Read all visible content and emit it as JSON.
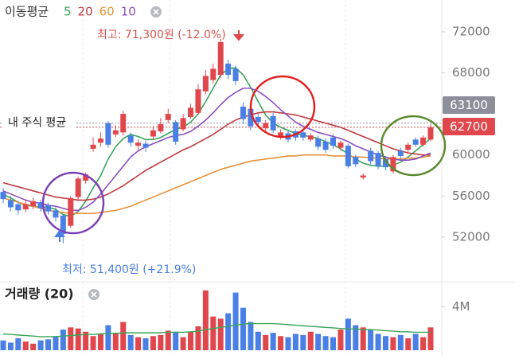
{
  "header": {
    "title": "이동평균"
  },
  "chart_data": [
    {
      "type": "candlestick",
      "up_color": "#e0474c",
      "down_color": "#4a7fe5",
      "open": [
        56400,
        55600,
        55200,
        54700,
        55000,
        55400,
        55100,
        54600,
        54100,
        53100,
        55900,
        57500,
        60600,
        61200,
        63100,
        62000,
        62200,
        61900,
        60900,
        61100,
        61800,
        62300,
        63400,
        63200,
        62500,
        63700,
        64100,
        66200,
        67300,
        67800,
        68900,
        68400,
        64700,
        64500,
        63700,
        62600,
        63800,
        61700,
        62100,
        62300,
        62200,
        61500,
        61600,
        61300,
        61700,
        60700,
        60900,
        59800,
        57800,
        60400,
        60200,
        59600,
        58400,
        60400,
        60500,
        61500,
        61000,
        61500
      ],
      "close": [
        55700,
        54900,
        54600,
        55200,
        55500,
        54800,
        54500,
        53900,
        52300,
        55800,
        57700,
        58100,
        61000,
        61600,
        61000,
        62400,
        64000,
        61200,
        61200,
        60700,
        62400,
        63000,
        64000,
        61300,
        63600,
        64600,
        66400,
        67700,
        68400,
        71000,
        67800,
        67200,
        63500,
        62800,
        63200,
        63100,
        62400,
        62200,
        61500,
        61700,
        61700,
        61900,
        60800,
        60500,
        60900,
        61200,
        58900,
        59100,
        58000,
        59400,
        58900,
        58800,
        59800,
        59900,
        61000,
        61000,
        61700,
        62700
      ],
      "high": [
        56800,
        56000,
        55500,
        55600,
        55800,
        55600,
        55300,
        54900,
        54200,
        56000,
        57900,
        58300,
        61700,
        62200,
        63300,
        62900,
        64300,
        62200,
        61500,
        61400,
        62800,
        63600,
        64500,
        63400,
        64000,
        65000,
        66900,
        68300,
        68900,
        71300,
        69300,
        68700,
        65100,
        64900,
        64000,
        63400,
        64100,
        62500,
        62400,
        62500,
        62500,
        62100,
        61900,
        61600,
        62000,
        61400,
        61100,
        60000,
        58200,
        60700,
        60400,
        59900,
        60000,
        60700,
        61200,
        61700,
        61900,
        63000
      ],
      "low": [
        55300,
        54500,
        54200,
        54400,
        54700,
        54500,
        54200,
        53500,
        51400,
        52900,
        55600,
        57200,
        60300,
        60800,
        60700,
        61700,
        61900,
        60800,
        60500,
        60300,
        61500,
        62100,
        63100,
        61000,
        62300,
        63500,
        63900,
        65900,
        67000,
        67500,
        67400,
        66800,
        63000,
        62400,
        62900,
        62200,
        62100,
        61500,
        61200,
        61400,
        61400,
        61300,
        60500,
        60200,
        60600,
        60400,
        58700,
        58800,
        57600,
        59100,
        58600,
        58500,
        58200,
        59600,
        60200,
        60800,
        60800,
        61300
      ],
      "series": [
        {
          "name": "5",
          "color": "#3aa55a",
          "values": [
            56200,
            55800,
            55400,
            55100,
            55000,
            54900,
            54900,
            54700,
            54200,
            54000,
            54500,
            55500,
            56800,
            58000,
            59600,
            60800,
            61600,
            62000,
            61800,
            61500,
            61500,
            61700,
            62100,
            62500,
            62700,
            63200,
            64000,
            65200,
            66500,
            67800,
            68400,
            68500,
            67800,
            66600,
            65200,
            63900,
            63100,
            62700,
            62400,
            62100,
            61900,
            61800,
            61600,
            61300,
            61000,
            60600,
            60100,
            59600,
            59200,
            59000,
            58900,
            58900,
            59000,
            59300,
            59800,
            60400,
            61000,
            61600
          ]
        },
        {
          "name": "20",
          "color": "#c0393f",
          "values": [
            57300,
            57100,
            56900,
            56700,
            56500,
            56300,
            56100,
            55900,
            55800,
            55700,
            55600,
            55600,
            55700,
            55900,
            56200,
            56600,
            57000,
            57500,
            58000,
            58500,
            58900,
            59300,
            59700,
            60100,
            60500,
            60800,
            61200,
            61600,
            62000,
            62500,
            63000,
            63400,
            63700,
            63900,
            64100,
            64200,
            64200,
            64100,
            64000,
            63900,
            63700,
            63500,
            63300,
            63100,
            62900,
            62700,
            62400,
            62100,
            61800,
            61500,
            61200,
            60900,
            60600,
            60400,
            60200,
            60100,
            60000,
            60000
          ]
        },
        {
          "name": "60",
          "color": "#e8923a",
          "values": [
            55800,
            55600,
            55400,
            55200,
            55000,
            54800,
            54600,
            54500,
            54400,
            54300,
            54300,
            54300,
            54300,
            54400,
            54500,
            54600,
            54800,
            55000,
            55300,
            55600,
            55900,
            56200,
            56500,
            56800,
            57100,
            57400,
            57700,
            58000,
            58300,
            58600,
            58800,
            59000,
            59200,
            59400,
            59500,
            59600,
            59700,
            59800,
            59900,
            59900,
            60000,
            60000,
            60000,
            60000,
            59900,
            59900,
            59900,
            59800,
            59800,
            59700,
            59700,
            59600,
            59600,
            59600,
            59700,
            59700,
            59800,
            59900
          ]
        },
        {
          "name": "10",
          "color": "#8a4fc0",
          "values": [
            56500,
            56200,
            55900,
            55600,
            55400,
            55300,
            55100,
            55000,
            54800,
            54600,
            54600,
            54900,
            55400,
            56200,
            57100,
            58000,
            58900,
            59800,
            60400,
            60800,
            61100,
            61400,
            61700,
            61900,
            62000,
            62300,
            62800,
            63400,
            64100,
            64900,
            65600,
            66100,
            66500,
            66500,
            66200,
            65700,
            65100,
            64400,
            63800,
            63200,
            62800,
            62500,
            62200,
            62000,
            61800,
            61600,
            61300,
            60900,
            60600,
            60300,
            60000,
            59800,
            59600,
            59500,
            59500,
            59600,
            59900,
            60200
          ]
        }
      ],
      "ylim": [
        47800,
        75100
      ],
      "yticks": [
        52000,
        56000,
        60000,
        68000,
        72000
      ],
      "high_label": "최고: 71,300원 (-12.0%)",
      "low_label": "최저: 51,400원 (+21.9%)",
      "average": {
        "label": "내 주식 평균",
        "value": 63100,
        "color": "#8a8f99"
      },
      "current": {
        "value": 62700,
        "color": "#e0474c"
      }
    },
    {
      "type": "bar",
      "title": "거래량 (20)",
      "values": [
        900000,
        700000,
        1100000,
        800000,
        600000,
        900000,
        1000000,
        1300000,
        1900000,
        2100000,
        2000000,
        1700000,
        1300000,
        1500000,
        2300000,
        1600000,
        2600000,
        1400000,
        1200000,
        1100000,
        1300000,
        1400000,
        1800000,
        1700000,
        1200000,
        1700000,
        2200000,
        5500000,
        3100000,
        2900000,
        3400000,
        5300000,
        3900000,
        2600000,
        1700000,
        1400000,
        1600000,
        1300000,
        1200000,
        1500000,
        1400000,
        1700000,
        1500000,
        1300000,
        1200000,
        1900000,
        2900000,
        2300000,
        2100000,
        1900000,
        1500000,
        1300000,
        1200000,
        1400000,
        1100000,
        1500000,
        1200000,
        2100000
      ],
      "line": {
        "color": "#3aa55a",
        "values": [
          1500000,
          1450000,
          1400000,
          1350000,
          1300000,
          1250000,
          1250000,
          1250000,
          1300000,
          1350000,
          1400000,
          1450000,
          1450000,
          1500000,
          1550000,
          1550000,
          1600000,
          1600000,
          1600000,
          1600000,
          1600000,
          1600000,
          1650000,
          1650000,
          1650000,
          1700000,
          1750000,
          1900000,
          2000000,
          2100000,
          2200000,
          2300000,
          2400000,
          2450000,
          2450000,
          2450000,
          2450000,
          2400000,
          2350000,
          2300000,
          2250000,
          2200000,
          2150000,
          2100000,
          2050000,
          2000000,
          1950000,
          1950000,
          1900000,
          1900000,
          1850000,
          1800000,
          1750000,
          1700000,
          1700000,
          1650000,
          1650000,
          1650000
        ]
      },
      "ylim": [
        0,
        6000000
      ],
      "yticks": [
        {
          "value": 4000000,
          "label": "4M"
        }
      ]
    }
  ]
}
